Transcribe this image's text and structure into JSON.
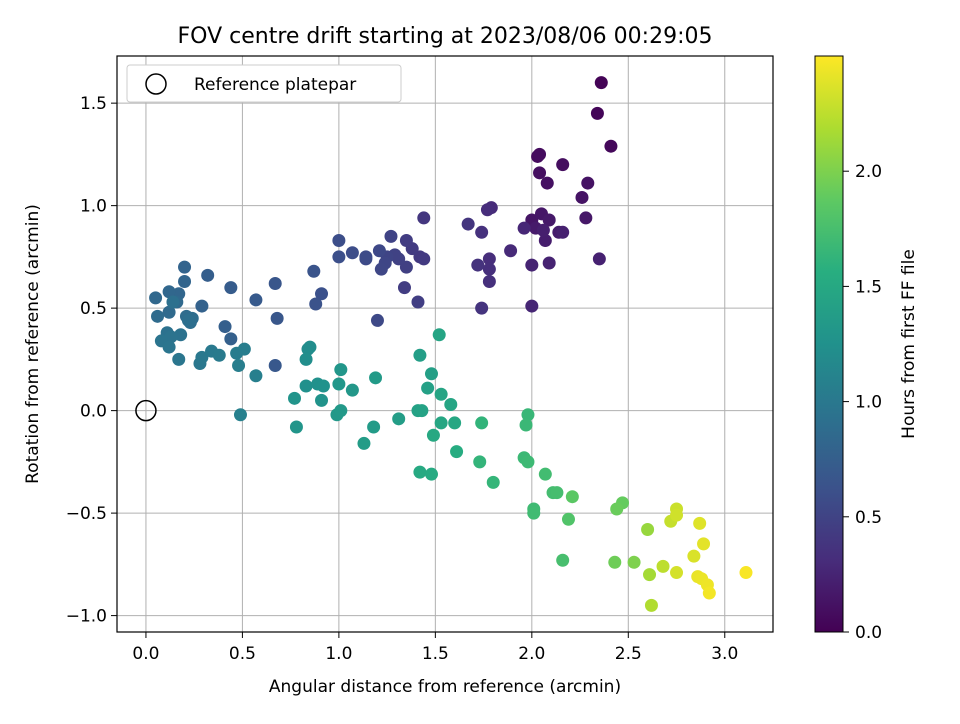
{
  "chart_data": {
    "type": "scatter",
    "title": "FOV centre drift starting at 2023/08/06 00:29:05",
    "xlabel": "Angular distance from reference (arcmin)",
    "ylabel": "Rotation from reference (arcmin)",
    "xlim": [
      -0.15,
      3.25
    ],
    "ylim": [
      -1.08,
      1.73
    ],
    "xticks": [
      "0.0",
      "0.5",
      "1.0",
      "1.5",
      "2.0",
      "2.5",
      "3.0"
    ],
    "xtick_values": [
      0,
      0.5,
      1.0,
      1.5,
      2.0,
      2.5,
      3.0
    ],
    "yticks": [
      "−1.0",
      "−0.5",
      "0.0",
      "0.5",
      "1.0",
      "1.5"
    ],
    "ytick_values": [
      -1.0,
      -0.5,
      0.0,
      0.5,
      1.0,
      1.5
    ],
    "grid": true,
    "legend": {
      "placement": "upper-left",
      "entries": [
        "Reference platepar"
      ]
    },
    "reference_point": {
      "x": 0.0,
      "y": 0.0
    },
    "colorbar": {
      "label": "Hours from first FF file",
      "colormap": "viridis",
      "range": [
        0.0,
        2.5
      ],
      "ticks": [
        "0.0",
        "0.5",
        "1.0",
        "1.5",
        "2.0"
      ],
      "tick_values": [
        0,
        0.5,
        1.0,
        1.5,
        2.0
      ]
    },
    "points": [
      [
        2.36,
        1.6,
        0.02
      ],
      [
        2.34,
        1.45,
        0.03
      ],
      [
        2.41,
        1.29,
        0.05
      ],
      [
        2.03,
        1.24,
        0.07
      ],
      [
        2.04,
        1.25,
        0.08
      ],
      [
        2.16,
        1.2,
        0.09
      ],
      [
        2.04,
        1.16,
        0.1
      ],
      [
        2.08,
        1.11,
        0.11
      ],
      [
        2.29,
        1.11,
        0.12
      ],
      [
        2.26,
        1.04,
        0.13
      ],
      [
        2.0,
        0.93,
        0.14
      ],
      [
        2.05,
        0.96,
        0.15
      ],
      [
        2.28,
        0.94,
        0.16
      ],
      [
        2.09,
        0.93,
        0.17
      ],
      [
        2.02,
        0.89,
        0.18
      ],
      [
        2.14,
        0.87,
        0.19
      ],
      [
        2.07,
        0.83,
        0.2
      ],
      [
        2.06,
        0.88,
        0.21
      ],
      [
        2.16,
        0.87,
        0.22
      ],
      [
        2.35,
        0.74,
        0.23
      ],
      [
        2.09,
        0.72,
        0.24
      ],
      [
        2.0,
        0.71,
        0.25
      ],
      [
        2.0,
        0.51,
        0.26
      ],
      [
        1.96,
        0.89,
        0.27
      ],
      [
        1.89,
        0.78,
        0.29
      ],
      [
        1.79,
        0.99,
        0.3
      ],
      [
        1.77,
        0.98,
        0.31
      ],
      [
        1.78,
        0.74,
        0.32
      ],
      [
        1.78,
        0.69,
        0.33
      ],
      [
        1.78,
        0.63,
        0.34
      ],
      [
        1.74,
        0.87,
        0.35
      ],
      [
        1.72,
        0.71,
        0.36
      ],
      [
        1.74,
        0.5,
        0.37
      ],
      [
        1.67,
        0.91,
        0.38
      ],
      [
        1.44,
        0.94,
        0.4
      ],
      [
        1.42,
        0.75,
        0.41
      ],
      [
        1.44,
        0.74,
        0.42
      ],
      [
        1.38,
        0.79,
        0.43
      ],
      [
        1.35,
        0.83,
        0.44
      ],
      [
        1.34,
        0.6,
        0.45
      ],
      [
        1.41,
        0.53,
        0.46
      ],
      [
        1.35,
        0.7,
        0.47
      ],
      [
        1.31,
        0.74,
        0.48
      ],
      [
        1.29,
        0.76,
        0.49
      ],
      [
        1.27,
        0.85,
        0.5
      ],
      [
        1.25,
        0.75,
        0.51
      ],
      [
        1.24,
        0.72,
        0.52
      ],
      [
        1.22,
        0.69,
        0.53
      ],
      [
        1.21,
        0.78,
        0.54
      ],
      [
        1.2,
        0.44,
        0.55
      ],
      [
        1.14,
        0.74,
        0.56
      ],
      [
        1.14,
        0.75,
        0.57
      ],
      [
        1.07,
        0.77,
        0.58
      ],
      [
        1.0,
        0.83,
        0.59
      ],
      [
        1.0,
        0.75,
        0.6
      ],
      [
        0.91,
        0.57,
        0.62
      ],
      [
        0.88,
        0.52,
        0.63
      ],
      [
        0.87,
        0.68,
        0.64
      ],
      [
        0.67,
        0.62,
        0.66
      ],
      [
        0.68,
        0.45,
        0.67
      ],
      [
        0.67,
        0.22,
        0.68
      ],
      [
        0.57,
        0.54,
        0.7
      ],
      [
        0.44,
        0.6,
        0.72
      ],
      [
        0.32,
        0.66,
        0.74
      ],
      [
        0.41,
        0.41,
        0.75
      ],
      [
        0.44,
        0.35,
        0.76
      ],
      [
        0.29,
        0.51,
        0.78
      ],
      [
        0.2,
        0.7,
        0.8
      ],
      [
        0.2,
        0.63,
        0.81
      ],
      [
        0.17,
        0.57,
        0.82
      ],
      [
        0.12,
        0.58,
        0.83
      ],
      [
        0.05,
        0.55,
        0.84
      ],
      [
        0.16,
        0.53,
        0.85
      ],
      [
        0.12,
        0.48,
        0.86
      ],
      [
        0.06,
        0.46,
        0.87
      ],
      [
        0.21,
        0.46,
        0.88
      ],
      [
        0.24,
        0.45,
        0.89
      ],
      [
        0.23,
        0.43,
        0.9
      ],
      [
        0.22,
        0.44,
        0.91
      ],
      [
        0.14,
        0.53,
        0.92
      ],
      [
        0.11,
        0.38,
        0.93
      ],
      [
        0.18,
        0.37,
        0.94
      ],
      [
        0.13,
        0.36,
        0.95
      ],
      [
        0.08,
        0.34,
        0.96
      ],
      [
        0.12,
        0.31,
        0.97
      ],
      [
        0.17,
        0.25,
        0.98
      ],
      [
        0.28,
        0.23,
        0.99
      ],
      [
        0.29,
        0.26,
        1.0
      ],
      [
        0.34,
        0.29,
        1.01
      ],
      [
        0.38,
        0.27,
        1.02
      ],
      [
        0.47,
        0.28,
        1.04
      ],
      [
        0.51,
        0.3,
        1.05
      ],
      [
        0.48,
        0.22,
        1.06
      ],
      [
        0.57,
        0.17,
        1.07
      ],
      [
        0.49,
        -0.02,
        1.08
      ],
      [
        0.84,
        0.3,
        1.2
      ],
      [
        0.85,
        0.31,
        1.21
      ],
      [
        0.83,
        0.25,
        1.22
      ],
      [
        0.83,
        0.12,
        1.24
      ],
      [
        0.89,
        0.13,
        1.25
      ],
      [
        0.92,
        0.12,
        1.26
      ],
      [
        0.91,
        0.05,
        1.27
      ],
      [
        0.77,
        0.06,
        1.28
      ],
      [
        0.78,
        -0.08,
        1.29
      ],
      [
        1.01,
        0.2,
        1.3
      ],
      [
        1.0,
        0.13,
        1.31
      ],
      [
        1.07,
        0.1,
        1.32
      ],
      [
        0.99,
        -0.02,
        1.33
      ],
      [
        1.01,
        0.0,
        1.34
      ],
      [
        1.19,
        0.16,
        1.35
      ],
      [
        1.18,
        -0.08,
        1.36
      ],
      [
        1.13,
        -0.16,
        1.37
      ],
      [
        1.31,
        -0.04,
        1.38
      ],
      [
        1.42,
        0.27,
        1.39
      ],
      [
        1.48,
        0.18,
        1.4
      ],
      [
        1.46,
        0.11,
        1.41
      ],
      [
        1.41,
        0.0,
        1.42
      ],
      [
        1.43,
        0.0,
        1.43
      ],
      [
        1.52,
        0.37,
        1.45
      ],
      [
        1.53,
        0.08,
        1.46
      ],
      [
        1.58,
        0.03,
        1.47
      ],
      [
        1.53,
        -0.06,
        1.48
      ],
      [
        1.6,
        -0.06,
        1.49
      ],
      [
        1.49,
        -0.12,
        1.5
      ],
      [
        1.42,
        -0.3,
        1.51
      ],
      [
        1.48,
        -0.31,
        1.52
      ],
      [
        1.61,
        -0.2,
        1.54
      ],
      [
        1.74,
        -0.06,
        1.62
      ],
      [
        1.73,
        -0.25,
        1.63
      ],
      [
        1.8,
        -0.35,
        1.64
      ],
      [
        1.98,
        -0.02,
        1.66
      ],
      [
        1.97,
        -0.07,
        1.67
      ],
      [
        1.96,
        -0.23,
        1.68
      ],
      [
        1.98,
        -0.25,
        1.69
      ],
      [
        2.01,
        -0.48,
        1.7
      ],
      [
        2.01,
        -0.5,
        1.71
      ],
      [
        2.07,
        -0.31,
        1.72
      ],
      [
        2.11,
        -0.4,
        1.73
      ],
      [
        2.13,
        -0.4,
        1.74
      ],
      [
        2.16,
        -0.73,
        1.75
      ],
      [
        2.19,
        -0.53,
        1.8
      ],
      [
        2.21,
        -0.42,
        1.85
      ],
      [
        2.47,
        -0.45,
        1.9
      ],
      [
        2.44,
        -0.48,
        1.92
      ],
      [
        2.43,
        -0.74,
        1.94
      ],
      [
        2.53,
        -0.74,
        2.0
      ],
      [
        2.6,
        -0.58,
        2.1
      ],
      [
        2.61,
        -0.8,
        2.15
      ],
      [
        2.62,
        -0.95,
        2.2
      ],
      [
        2.68,
        -0.76,
        2.25
      ],
      [
        2.72,
        -0.54,
        2.28
      ],
      [
        2.75,
        -0.48,
        2.3
      ],
      [
        2.75,
        -0.51,
        2.32
      ],
      [
        2.75,
        -0.79,
        2.34
      ],
      [
        2.84,
        -0.71,
        2.36
      ],
      [
        2.87,
        -0.55,
        2.38
      ],
      [
        2.89,
        -0.65,
        2.4
      ],
      [
        2.86,
        -0.81,
        2.42
      ],
      [
        2.88,
        -0.82,
        2.43
      ],
      [
        2.91,
        -0.85,
        2.44
      ],
      [
        2.92,
        -0.89,
        2.46
      ],
      [
        3.11,
        -0.79,
        2.48
      ]
    ]
  }
}
